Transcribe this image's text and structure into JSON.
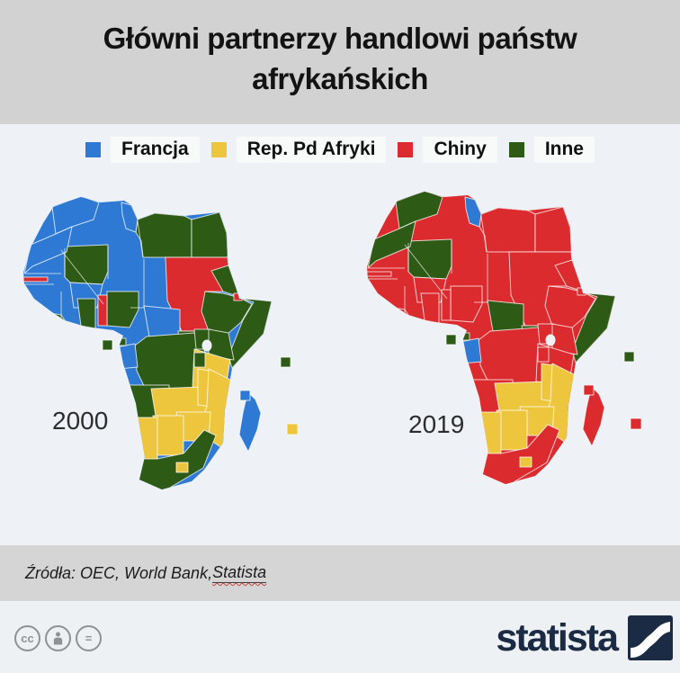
{
  "title": {
    "line1": "Główni partnerzy handlowi państw",
    "line2": "afrykańskich"
  },
  "legend": [
    {
      "id": "francja",
      "label": "Francja"
    },
    {
      "id": "rep_pd_afryki",
      "label": "Rep. Pd Afryki"
    },
    {
      "id": "chiny",
      "label": "Chiny"
    },
    {
      "id": "inne",
      "label": "Inne"
    }
  ],
  "colors": {
    "francja": "#2e79d3",
    "rep_pd_afryki": "#eec63e",
    "chiny": "#dc2b2f",
    "inne": "#2d5a15"
  },
  "maps": [
    {
      "year": "2000",
      "base": "francja",
      "assignments": {
        "morocco": "francja",
        "western_sahara": "francja",
        "tunisia": "francja",
        "libya": "inne",
        "egypt": "inne",
        "sudan": "chiny",
        "mali": "inne",
        "burkina_faso": "francja",
        "eritrea": "inne",
        "ethiopia": "inne",
        "somalia": "inne",
        "djibouti": "chiny",
        "south_sudan": "inne",
        "car": "francja",
        "uganda": "inne",
        "kenya": "inne",
        "tanzania": "rep_pd_afryki",
        "rwanda_burundi": "inne",
        "drc": "inne",
        "angola": "inne",
        "zambia": "rep_pd_afryki",
        "malawi": "rep_pd_afryki",
        "mozambique": "rep_pd_afryki",
        "zimbabwe": "rep_pd_afryki",
        "botswana": "rep_pd_afryki",
        "namibia": "rep_pd_afryki",
        "south_africa": "inne",
        "lesotho": "rep_pd_afryki",
        "nigeria": "inne",
        "benin": "chiny",
        "ghana": "inne",
        "liberia": "inne",
        "gambia": "chiny",
        "gabon": "francja",
        "equatorial_guinea": "inne",
        "madagascar": "francja",
        "sao_tome": "inne",
        "seychelles": "inne",
        "comoros": "francja",
        "mauritius": "rep_pd_afryki"
      }
    },
    {
      "year": "2019",
      "base": "chiny",
      "assignments": {
        "morocco": "inne",
        "western_sahara": "inne",
        "tunisia": "francja",
        "libya": "chiny",
        "egypt": "chiny",
        "sudan": "chiny",
        "mali": "inne",
        "burkina_faso": "chiny",
        "eritrea": "chiny",
        "ethiopia": "chiny",
        "somalia": "inne",
        "djibouti": "chiny",
        "south_sudan": "inne",
        "car": "inne",
        "uganda": "chiny",
        "kenya": "chiny",
        "tanzania": "chiny",
        "rwanda_burundi": "chiny",
        "drc": "chiny",
        "angola": "chiny",
        "zambia": "rep_pd_afryki",
        "malawi": "rep_pd_afryki",
        "mozambique": "rep_pd_afryki",
        "zimbabwe": "rep_pd_afryki",
        "botswana": "rep_pd_afryki",
        "namibia": "rep_pd_afryki",
        "south_africa": "chiny",
        "lesotho": "rep_pd_afryki",
        "nigeria": "chiny",
        "benin": "chiny",
        "ghana": "chiny",
        "liberia": "chiny",
        "gambia": "chiny",
        "gabon": "francja",
        "equatorial_guinea": "inne",
        "madagascar": "chiny",
        "sao_tome": "inne",
        "seychelles": "inne",
        "comoros": "chiny",
        "mauritius": "chiny"
      }
    }
  ],
  "sources": {
    "prefix": "Źródła: OEC, World Bank, ",
    "statista_link": "Statista"
  },
  "footer": {
    "brand": "statista",
    "cc_glyph": "cc",
    "nd_glyph": "="
  }
}
